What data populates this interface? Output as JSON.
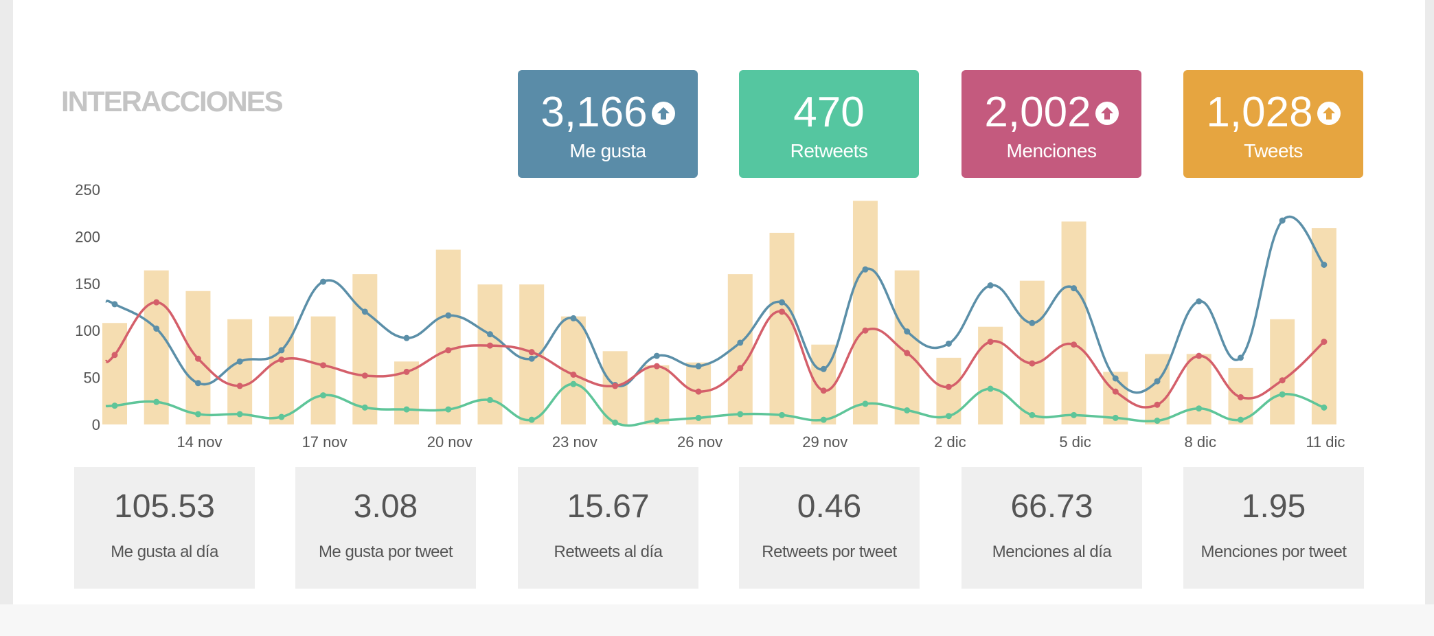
{
  "section_title": "INTERACCIONES",
  "cards": [
    {
      "value": "3,166",
      "label": "Me gusta",
      "color": "#5a8ca8",
      "arrow": true
    },
    {
      "value": "470",
      "label": "Retweets",
      "color": "#55c6a0",
      "arrow": false
    },
    {
      "value": "2,002",
      "label": "Menciones",
      "color": "#c45a7e",
      "arrow": true
    },
    {
      "value": "1,028",
      "label": "Tweets",
      "color": "#e6a540",
      "arrow": true
    }
  ],
  "stats": [
    {
      "value": "105.53",
      "label": "Me gusta al día"
    },
    {
      "value": "3.08",
      "label": "Me gusta por tweet"
    },
    {
      "value": "15.67",
      "label": "Retweets al día"
    },
    {
      "value": "0.46",
      "label": "Retweets por tweet"
    },
    {
      "value": "66.73",
      "label": "Menciones al día"
    },
    {
      "value": "1.95",
      "label": "Menciones por tweet"
    }
  ],
  "chart_data": {
    "type": "bar",
    "x": [
      "12 nov",
      "13 nov",
      "14 nov",
      "15 nov",
      "16 nov",
      "17 nov",
      "18 nov",
      "19 nov",
      "20 nov",
      "21 nov",
      "22 nov",
      "23 nov",
      "24 nov",
      "25 nov",
      "26 nov",
      "27 nov",
      "28 nov",
      "29 nov",
      "30 nov",
      "1 dic",
      "2 dic",
      "3 dic",
      "4 dic",
      "5 dic",
      "6 dic",
      "7 dic",
      "8 dic",
      "9 dic",
      "10 dic",
      "11 dic"
    ],
    "xticks": [
      "14 nov",
      "17 nov",
      "20 nov",
      "23 nov",
      "26 nov",
      "29 nov",
      "2 dic",
      "5 dic",
      "8 dic",
      "11 dic"
    ],
    "ylim": [
      0,
      250
    ],
    "yticks": [
      0,
      50,
      100,
      150,
      200,
      250
    ],
    "grid": false,
    "series": [
      {
        "kind": "bar",
        "color": "#f5ddb1",
        "values": [
          108,
          164,
          142,
          112,
          115,
          115,
          160,
          67,
          186,
          149,
          149,
          115,
          78,
          63,
          66,
          160,
          204,
          85,
          238,
          164,
          71,
          104,
          153,
          216,
          56,
          75,
          75,
          60,
          112,
          209
        ]
      },
      {
        "kind": "line",
        "color": "#5b8fa8",
        "values": [
          128,
          102,
          44,
          67,
          79,
          152,
          120,
          92,
          116,
          96,
          70,
          113,
          42,
          73,
          62,
          87,
          130,
          59,
          165,
          99,
          86,
          148,
          108,
          145,
          49,
          46,
          131,
          71,
          217,
          170
        ]
      },
      {
        "kind": "line",
        "color": "#d45f6a",
        "values": [
          74,
          130,
          70,
          41,
          69,
          63,
          52,
          56,
          79,
          84,
          77,
          53,
          41,
          62,
          35,
          60,
          120,
          36,
          100,
          76,
          40,
          88,
          65,
          85,
          35,
          21,
          73,
          29,
          47,
          88
        ]
      },
      {
        "kind": "line",
        "color": "#5ec599",
        "values": [
          20,
          24,
          11,
          11,
          8,
          31,
          18,
          16,
          16,
          26,
          5,
          43,
          2,
          4,
          7,
          11,
          10,
          5,
          22,
          15,
          9,
          38,
          10,
          10,
          7,
          4,
          17,
          5,
          32,
          18
        ]
      }
    ]
  }
}
